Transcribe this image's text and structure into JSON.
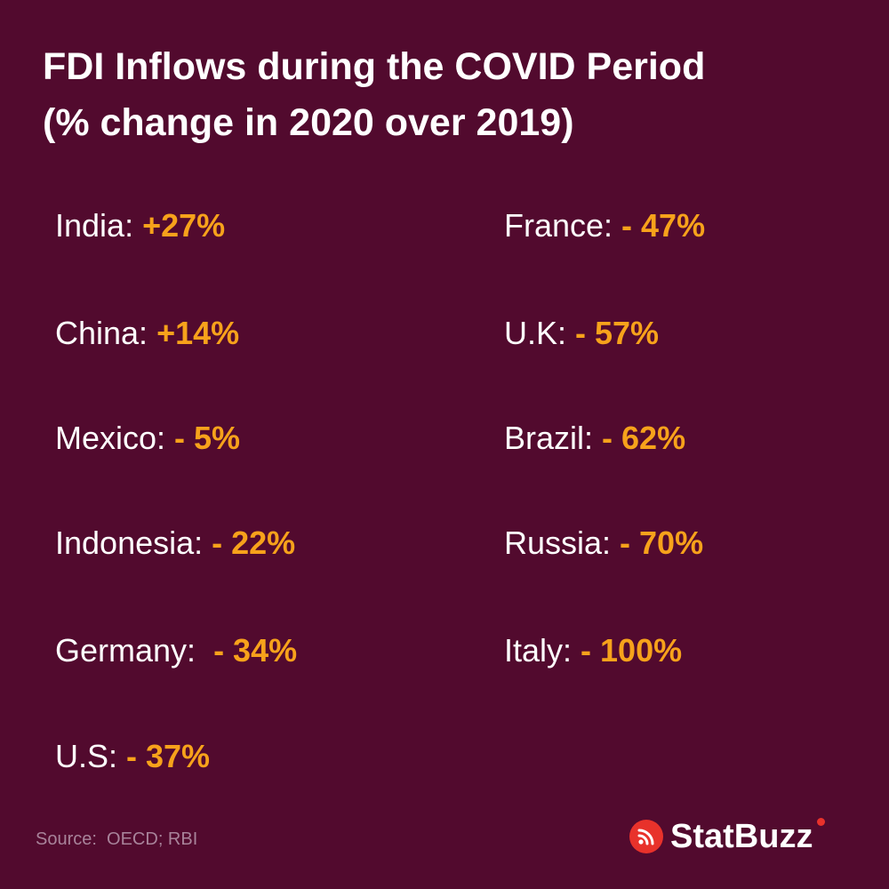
{
  "title": {
    "line1": "FDI Inflows during the COVID Period",
    "line2": "(% change in 2020 over 2019)"
  },
  "items": [
    {
      "label": "India: ",
      "value": "+27%"
    },
    {
      "label": "China: ",
      "value": "+14%"
    },
    {
      "label": "Mexico: ",
      "value": "- 5%"
    },
    {
      "label": "Indonesia: ",
      "value": "- 22%"
    },
    {
      "label": "Germany:  ",
      "value": "- 34%"
    },
    {
      "label": "U.S: ",
      "value": "- 37%"
    },
    {
      "label": "France: ",
      "value": "- 47%"
    },
    {
      "label": "U.K: ",
      "value": "- 57%"
    },
    {
      "label": "Brazil: ",
      "value": "- 62%"
    },
    {
      "label": "Russia: ",
      "value": "- 70%"
    },
    {
      "label": "Italy: ",
      "value": "- 100%"
    }
  ],
  "footer": {
    "source": "Source:  OECD; RBI",
    "brand": "StatBuzz",
    "brand_icon": "rss-icon"
  },
  "colors": {
    "background": "#520a2e",
    "accent": "#f7a21b",
    "brand_red": "#e8322b"
  }
}
